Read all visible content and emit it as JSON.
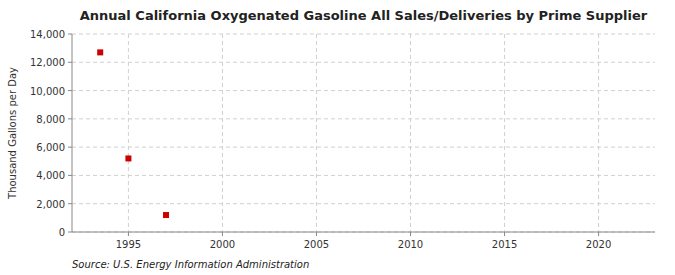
{
  "chart_data": {
    "type": "scatter",
    "title": "Annual California Oxygenated Gasoline All Sales/Deliveries by Prime Supplier",
    "ylabel": "Thousand Gallons per Day",
    "source": "Source: U.S. Energy Information Administration",
    "x": [
      1993.5,
      1995,
      1997
    ],
    "values": [
      12700,
      5200,
      1200
    ],
    "color": "#cc0000",
    "marker": "square",
    "xlim": [
      1992,
      2023
    ],
    "ylim": [
      0,
      14000
    ],
    "xticks": [
      1995,
      2000,
      2005,
      2010,
      2015,
      2020
    ],
    "yticks": [
      0,
      {
        "value": 2000,
        "label": "2,000"
      },
      {
        "value": 4000,
        "label": "4,000"
      },
      {
        "value": 6000,
        "label": "6,000"
      },
      {
        "value": 8000,
        "label": "8,000"
      },
      {
        "value": 10000,
        "label": "10,000"
      },
      {
        "value": 12000,
        "label": "12,000"
      },
      {
        "value": 14000,
        "label": "14,000"
      }
    ],
    "grid": true
  }
}
